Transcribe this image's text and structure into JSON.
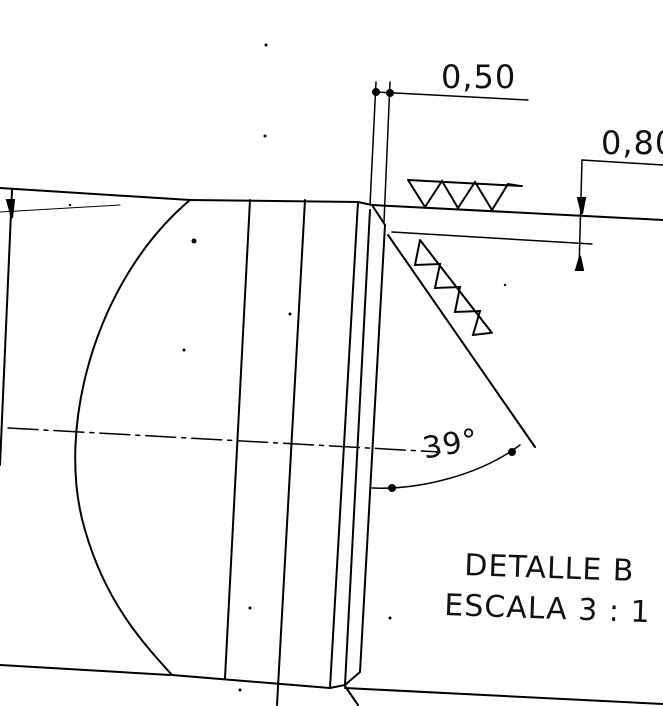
{
  "drawing": {
    "dimensions": {
      "top_gap": "0,50",
      "right_height": "0,80",
      "angle": "39°"
    },
    "detail": {
      "title": "DETALLE B",
      "scale": "ESCALA 3 : 1"
    },
    "line_color": "#000000"
  }
}
